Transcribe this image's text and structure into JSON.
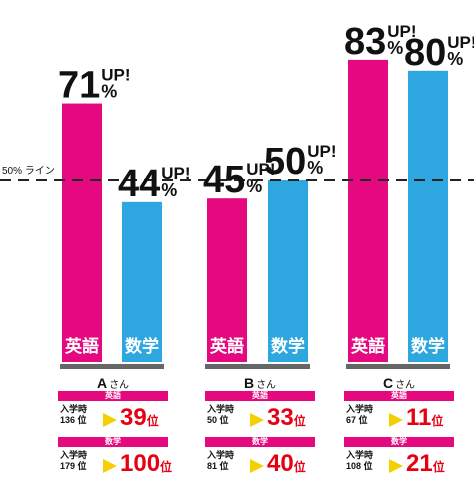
{
  "chart_data": {
    "type": "bar",
    "categories": [
      "Aさん",
      "Bさん",
      "Cさん"
    ],
    "series": [
      {
        "name": "英語",
        "values": [
          71,
          45,
          83
        ]
      },
      {
        "name": "数学",
        "values": [
          44,
          50,
          80
        ]
      }
    ],
    "ylim": [
      0,
      100
    ],
    "reference_line": {
      "value": 50,
      "label": "50% ライン"
    },
    "value_suffix": "%",
    "up_marker": "UP!",
    "grid": false
  },
  "colors": {
    "english": "#e5097f",
    "math": "#2ea7e0",
    "arrow": "#f4d000",
    "rank": "#e60012",
    "base": "#666666"
  },
  "people": [
    {
      "name": "A",
      "honorific": "さん",
      "english": {
        "header": "英語",
        "before_label": "入学時",
        "before_rank": "136 位",
        "after_num": "39",
        "after_unit": "位"
      },
      "math": {
        "header": "数学",
        "before_label": "入学時",
        "before_rank": "179 位",
        "after_num": "100",
        "after_unit": "位"
      }
    },
    {
      "name": "B",
      "honorific": "さん",
      "english": {
        "header": "英語",
        "before_label": "入学時",
        "before_rank": "50 位",
        "after_num": "33",
        "after_unit": "位"
      },
      "math": {
        "header": "数学",
        "before_label": "入学時",
        "before_rank": "81 位",
        "after_num": "40",
        "after_unit": "位"
      }
    },
    {
      "name": "C",
      "honorific": "さん",
      "english": {
        "header": "英語",
        "before_label": "入学時",
        "before_rank": "67 位",
        "after_num": "11",
        "after_unit": "位"
      },
      "math": {
        "header": "数学",
        "before_label": "入学時",
        "before_rank": "108 位",
        "after_num": "21",
        "after_unit": "位"
      }
    }
  ]
}
